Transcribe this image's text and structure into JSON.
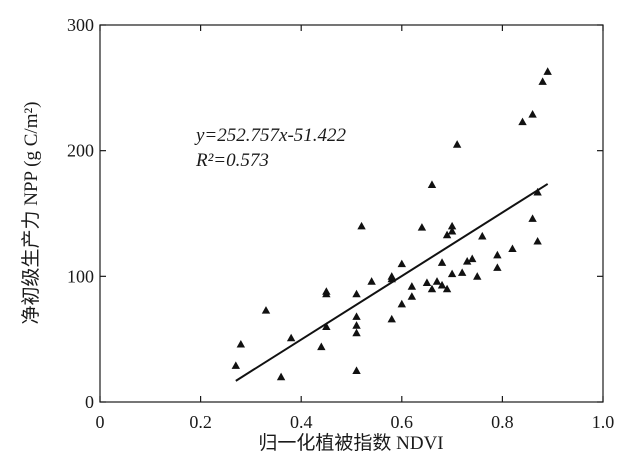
{
  "chart_data": {
    "type": "scatter",
    "xlabel": "归一化植被指数 NDVI",
    "ylabel": "净初级生产力 NPP (g C/m²)",
    "xlim": [
      0,
      1.0
    ],
    "ylim": [
      0,
      300
    ],
    "x_ticks": [
      "0",
      "0.2",
      "0.4",
      "0.6",
      "0.8",
      "1.0"
    ],
    "y_ticks": [
      "0",
      "100",
      "200",
      "300"
    ],
    "x_tick_values": [
      0,
      0.2,
      0.4,
      0.6,
      0.8,
      1.0
    ],
    "y_tick_values": [
      0,
      100,
      200,
      300
    ],
    "grid": false,
    "marker": "triangle",
    "marker_color": "#111111",
    "annotations": {
      "equation": "y=252.757x-51.422",
      "r_squared": "R²=0.573"
    },
    "fit_line": {
      "slope": 252.757,
      "intercept": -51.422,
      "x_range": [
        0.27,
        0.89
      ]
    },
    "points": [
      {
        "x": 0.27,
        "y": 29
      },
      {
        "x": 0.28,
        "y": 46
      },
      {
        "x": 0.33,
        "y": 73
      },
      {
        "x": 0.36,
        "y": 20
      },
      {
        "x": 0.38,
        "y": 51
      },
      {
        "x": 0.44,
        "y": 44
      },
      {
        "x": 0.45,
        "y": 60
      },
      {
        "x": 0.45,
        "y": 86
      },
      {
        "x": 0.45,
        "y": 88
      },
      {
        "x": 0.51,
        "y": 25
      },
      {
        "x": 0.51,
        "y": 55
      },
      {
        "x": 0.51,
        "y": 61
      },
      {
        "x": 0.51,
        "y": 68
      },
      {
        "x": 0.51,
        "y": 86
      },
      {
        "x": 0.52,
        "y": 140
      },
      {
        "x": 0.54,
        "y": 96
      },
      {
        "x": 0.58,
        "y": 66
      },
      {
        "x": 0.58,
        "y": 98
      },
      {
        "x": 0.58,
        "y": 100
      },
      {
        "x": 0.6,
        "y": 78
      },
      {
        "x": 0.6,
        "y": 110
      },
      {
        "x": 0.62,
        "y": 84
      },
      {
        "x": 0.62,
        "y": 92
      },
      {
        "x": 0.64,
        "y": 139
      },
      {
        "x": 0.65,
        "y": 95
      },
      {
        "x": 0.66,
        "y": 90
      },
      {
        "x": 0.66,
        "y": 173
      },
      {
        "x": 0.67,
        "y": 96
      },
      {
        "x": 0.68,
        "y": 93
      },
      {
        "x": 0.68,
        "y": 111
      },
      {
        "x": 0.69,
        "y": 90
      },
      {
        "x": 0.69,
        "y": 133
      },
      {
        "x": 0.7,
        "y": 102
      },
      {
        "x": 0.7,
        "y": 136
      },
      {
        "x": 0.7,
        "y": 140
      },
      {
        "x": 0.71,
        "y": 205
      },
      {
        "x": 0.72,
        "y": 103
      },
      {
        "x": 0.73,
        "y": 112
      },
      {
        "x": 0.74,
        "y": 114
      },
      {
        "x": 0.75,
        "y": 100
      },
      {
        "x": 0.76,
        "y": 132
      },
      {
        "x": 0.79,
        "y": 107
      },
      {
        "x": 0.79,
        "y": 117
      },
      {
        "x": 0.82,
        "y": 122
      },
      {
        "x": 0.84,
        "y": 223
      },
      {
        "x": 0.86,
        "y": 146
      },
      {
        "x": 0.86,
        "y": 229
      },
      {
        "x": 0.87,
        "y": 128
      },
      {
        "x": 0.87,
        "y": 167
      },
      {
        "x": 0.88,
        "y": 255
      },
      {
        "x": 0.89,
        "y": 263
      }
    ]
  }
}
